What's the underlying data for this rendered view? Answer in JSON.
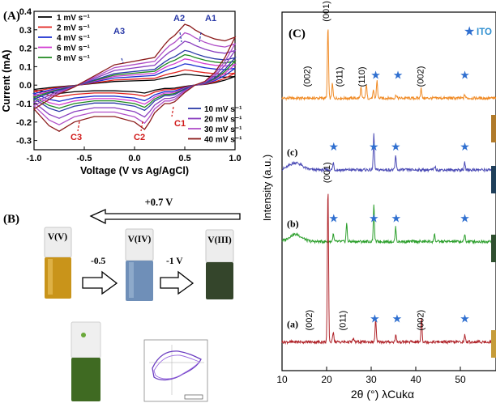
{
  "panelA": {
    "label": "(A)",
    "chart_data": {
      "type": "line",
      "title": "",
      "xlabel": "Voltage (V vs Ag/AgCl)",
      "ylabel": "Current (mA)",
      "xlim": [
        -1.0,
        1.0
      ],
      "ylim": [
        -0.35,
        0.4
      ],
      "xticks": [
        "-1.0",
        "-0.5",
        "0.0",
        "0.5",
        "1.0"
      ],
      "yticks": [
        "-0.3",
        "-0.2",
        "-0.1",
        "0.0",
        "0.1",
        "0.2",
        "0.3",
        "0.4"
      ],
      "peak_labels": [
        "A3",
        "A2",
        "A1",
        "C3",
        "C2",
        "C1"
      ],
      "legend_left": [
        "1 mV s⁻¹",
        "2 mV s⁻¹",
        "4 mV s⁻¹",
        "6 mV s⁻¹",
        "8 mV s⁻¹"
      ],
      "legend_right": [
        "10 mV s⁻¹",
        "20 mV s⁻¹",
        "30 mV s⁻¹",
        "40 mV s⁻¹"
      ],
      "series": [
        {
          "name": "1 mV s⁻¹",
          "color": "#000000",
          "scale": 0.18
        },
        {
          "name": "2 mV s⁻¹",
          "color": "#e0201c",
          "scale": 0.25
        },
        {
          "name": "4 mV s⁻¹",
          "color": "#1c2fd0",
          "scale": 0.35
        },
        {
          "name": "6 mV s⁻¹",
          "color": "#d23cd2",
          "scale": 0.43
        },
        {
          "name": "8 mV s⁻¹",
          "color": "#1f8a1f",
          "scale": 0.5
        },
        {
          "name": "10 mV s⁻¹",
          "color": "#2a3aa8",
          "scale": 0.57
        },
        {
          "name": "20 mV s⁻¹",
          "color": "#8a3fc0",
          "scale": 0.72
        },
        {
          "name": "30 mV s⁻¹",
          "color": "#b04fc8",
          "scale": 0.86
        },
        {
          "name": "40 mV s⁻¹",
          "color": "#8b1a1a",
          "scale": 1.0
        }
      ],
      "base_curve": {
        "anodic_x": [
          -1.0,
          -0.8,
          -0.6,
          -0.4,
          -0.2,
          0.0,
          0.1,
          0.2,
          0.3,
          0.35,
          0.4,
          0.45,
          0.5,
          0.55,
          0.6,
          0.7,
          0.8,
          0.9,
          1.0
        ],
        "anodic_y": [
          -0.13,
          -0.06,
          -0.01,
          0.05,
          0.11,
          0.13,
          0.14,
          0.15,
          0.22,
          0.25,
          0.27,
          0.3,
          0.33,
          0.32,
          0.3,
          0.27,
          0.25,
          0.24,
          0.26
        ],
        "cathodic_x": [
          1.0,
          0.9,
          0.8,
          0.7,
          0.6,
          0.5,
          0.4,
          0.35,
          0.3,
          0.2,
          0.15,
          0.1,
          0.0,
          -0.2,
          -0.4,
          -0.6,
          -0.75,
          -0.85,
          -1.0
        ],
        "cathodic_y": [
          0.26,
          0.15,
          0.07,
          0.02,
          0.0,
          -0.04,
          -0.09,
          -0.1,
          -0.1,
          -0.15,
          -0.2,
          -0.24,
          -0.2,
          -0.17,
          -0.17,
          -0.2,
          -0.25,
          -0.22,
          -0.13
        ]
      }
    }
  },
  "panelB": {
    "label": "(B)",
    "voltage_top": "+0.7 V",
    "voltage_left": "-0.5",
    "voltage_right": "-1 V",
    "vial_labels": [
      "V(V)",
      "V(IV)",
      "V(III)"
    ],
    "vial_colors": [
      "#c9941a",
      "#6f8fb8",
      "#34452b"
    ],
    "lower_vial_color": "#3f6a22"
  },
  "panelC": {
    "label": "(C)",
    "legend": "ITO",
    "chart_data": {
      "type": "line",
      "title": "",
      "xlabel": "2θ (°) λCukα",
      "ylabel": "Intensity (a.u.)",
      "xlim": [
        10,
        58
      ],
      "xticks": [
        "10",
        "20",
        "30",
        "40",
        "50"
      ],
      "series": [
        {
          "name": "",
          "label": "",
          "color": "#f08a24",
          "offset": 0.76,
          "peaks": [
            [
              20.3,
              0.2
            ],
            [
              21.3,
              0.04
            ],
            [
              27.7,
              0.03
            ],
            [
              28.9,
              0.04
            ],
            [
              30.5,
              0.02
            ],
            [
              31.3,
              0.05
            ],
            [
              35.6,
              0.01
            ],
            [
              41.2,
              0.03
            ],
            [
              51.0,
              0.01
            ]
          ]
        },
        {
          "name": "",
          "label": "(c)",
          "color": "#4a4ab5",
          "offset": 0.56,
          "peaks": [
            [
              21.5,
              0.02
            ],
            [
              30.6,
              0.1
            ],
            [
              35.5,
              0.04
            ],
            [
              44.3,
              0.01
            ],
            [
              51.0,
              0.02
            ]
          ]
        },
        {
          "name": "",
          "label": "(b)",
          "color": "#2ea02e",
          "offset": 0.36,
          "peaks": [
            [
              21.5,
              0.02
            ],
            [
              24.5,
              0.05
            ],
            [
              30.6,
              0.1
            ],
            [
              35.5,
              0.04
            ],
            [
              44.2,
              0.02
            ],
            [
              51.0,
              0.02
            ]
          ]
        },
        {
          "name": "",
          "label": "(a)",
          "color": "#b0242a",
          "offset": 0.08,
          "peaks": [
            [
              20.3,
              0.43
            ],
            [
              21.5,
              0.03
            ],
            [
              26.0,
              0.01
            ],
            [
              31.0,
              0.06
            ],
            [
              35.5,
              0.02
            ],
            [
              41.3,
              0.07
            ],
            [
              51.0,
              0.02
            ]
          ]
        }
      ],
      "annotations": [
        {
          "text": "(001)",
          "x": 19.8,
          "series": 0
        },
        {
          "text": "(002)",
          "x": 15.5,
          "series": 0
        },
        {
          "text": "(011)",
          "x": 22.8,
          "series": 0
        },
        {
          "text": "(110)",
          "x": 27.8,
          "series": 0
        },
        {
          "text": "(002)",
          "x": 41.0,
          "series": 0
        },
        {
          "text": "(001)",
          "x": 20.0,
          "series": 3
        },
        {
          "text": "(002)",
          "x": 16.0,
          "series": 3
        },
        {
          "text": "(011)",
          "x": 23.5,
          "series": 3
        },
        {
          "text": "(002)",
          "x": 41.0,
          "series": 3
        }
      ],
      "ito_markers": [
        [
          31.0,
          0
        ],
        [
          36.0,
          0
        ],
        [
          51.0,
          0
        ],
        [
          21.6,
          1
        ],
        [
          30.6,
          1
        ],
        [
          35.5,
          1
        ],
        [
          51.0,
          1
        ],
        [
          21.6,
          2
        ],
        [
          30.6,
          2
        ],
        [
          35.6,
          2
        ],
        [
          51.0,
          2
        ],
        [
          30.8,
          3
        ],
        [
          35.8,
          3
        ],
        [
          51.0,
          3
        ]
      ]
    }
  }
}
